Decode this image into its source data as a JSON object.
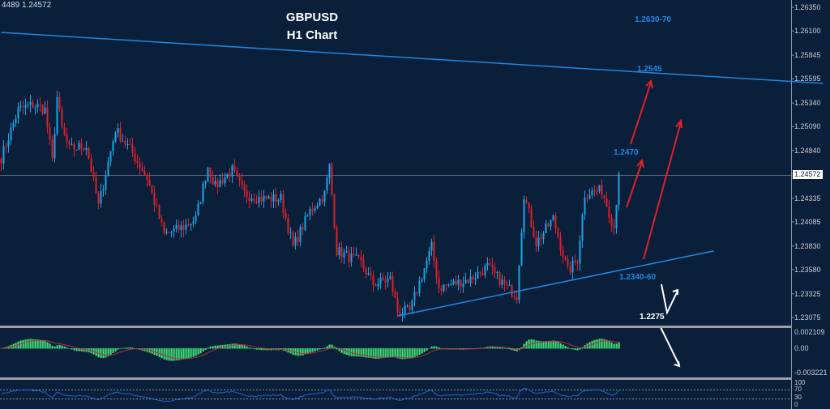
{
  "header": {
    "ohlc_readout": "4489 1.24572"
  },
  "chart_data": {
    "type": "candlestick",
    "title": "GBPUSD",
    "subtitle": "H1 Chart",
    "symbol": "GBPUSD",
    "timeframe": "H1",
    "current_price": "1.24572",
    "price_axis": {
      "ticks": [
        "1.26350",
        "1.26100",
        "1.25845",
        "1.25595",
        "1.25340",
        "1.25090",
        "1.24840",
        "1.24335",
        "1.24085",
        "1.23830",
        "1.23580",
        "1.23325",
        "1.23075"
      ],
      "ylim": [
        1.2297,
        1.2641
      ]
    },
    "price_path": [
      [
        0,
        1.2476
      ],
      [
        7,
        1.2527
      ],
      [
        13,
        1.2532
      ],
      [
        18,
        1.2527
      ],
      [
        21,
        1.2472
      ],
      [
        23,
        1.254
      ],
      [
        25,
        1.2506
      ],
      [
        28,
        1.2485
      ],
      [
        35,
        1.2489
      ],
      [
        40,
        1.2425
      ],
      [
        47,
        1.2506
      ],
      [
        53,
        1.2485
      ],
      [
        60,
        1.2455
      ],
      [
        67,
        1.2395
      ],
      [
        75,
        1.2403
      ],
      [
        80,
        1.2412
      ],
      [
        85,
        1.2467
      ],
      [
        88,
        1.2446
      ],
      [
        95,
        1.2463
      ],
      [
        100,
        1.2438
      ],
      [
        107,
        1.2433
      ],
      [
        115,
        1.2433
      ],
      [
        120,
        1.2382
      ],
      [
        127,
        1.242
      ],
      [
        133,
        1.2438
      ],
      [
        135,
        1.2467
      ],
      [
        138,
        1.2378
      ],
      [
        148,
        1.2365
      ],
      [
        153,
        1.2343
      ],
      [
        160,
        1.2348
      ],
      [
        163,
        1.2314
      ],
      [
        168,
        1.2314
      ],
      [
        177,
        1.2382
      ],
      [
        180,
        1.2339
      ],
      [
        193,
        1.2348
      ],
      [
        200,
        1.2361
      ],
      [
        208,
        1.2339
      ],
      [
        212,
        1.2331
      ],
      [
        215,
        1.2438
      ],
      [
        220,
        1.2386
      ],
      [
        227,
        1.2412
      ],
      [
        233,
        1.2356
      ],
      [
        237,
        1.2369
      ],
      [
        240,
        1.2438
      ],
      [
        247,
        1.2442
      ],
      [
        252,
        1.2403
      ],
      [
        254,
        1.2459
      ]
    ],
    "trendlines": [
      {
        "name": "resistance",
        "start": [
          0,
          1.26085
        ],
        "end": [
          338,
          1.25546
        ],
        "color": "#1e88e5"
      },
      {
        "name": "support",
        "start": [
          163,
          1.23092
        ],
        "end": [
          293,
          1.23777
        ],
        "color": "#1e88e5"
      }
    ],
    "annotations": {
      "target_high": "1.2630-70",
      "resistance": "1.2545",
      "first_target": "1.2470",
      "support": "1.2340-60",
      "breakdown": "1.2275"
    },
    "macd_panel": {
      "ticks": [
        "0.002109",
        "0.00",
        "-0.003221"
      ]
    },
    "rsi_panel": {
      "ticks": [
        "100",
        "70",
        "30",
        "0"
      ],
      "levels": [
        70,
        30
      ]
    },
    "colors": {
      "bull": "#19a6e8",
      "bear": "#e0202a",
      "background": "#0a1f3a",
      "histogram": "#3ddc75",
      "signal": "#c0283c",
      "rsi": "#2c5fd0"
    }
  }
}
